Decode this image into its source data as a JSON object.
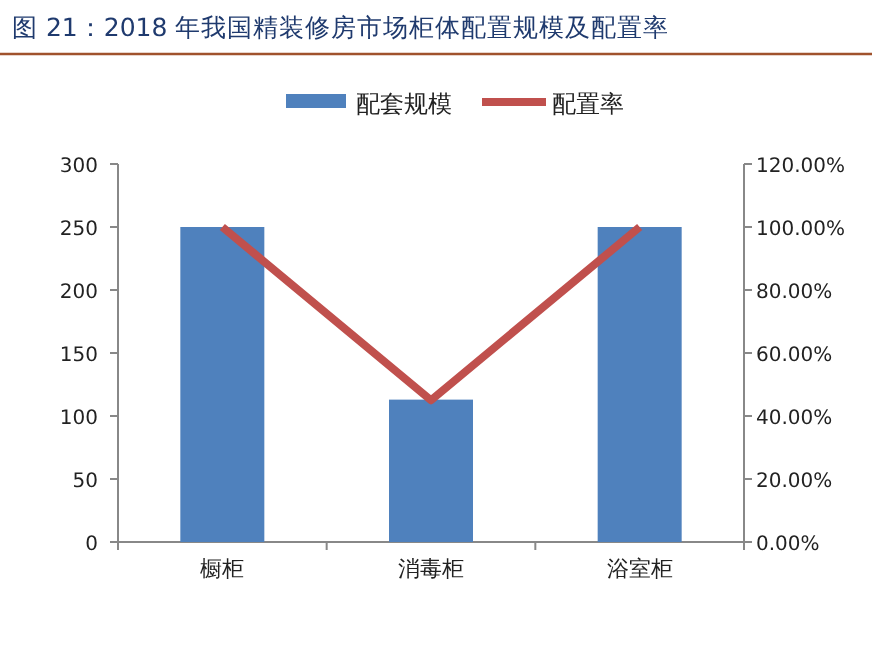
{
  "chart_data": {
    "type": "bar",
    "title": "图 21：2018 年我国精装修房市场柜体配置规模及配置率",
    "categories": [
      "橱柜",
      "消毒柜",
      "浴室柜"
    ],
    "series": [
      {
        "name": "配套规模",
        "color": "#4f81bd",
        "values": [
          250,
          113,
          250
        ]
      },
      {
        "name": "配置率",
        "type": "line",
        "axis": "y2",
        "color": "#c0504d",
        "values": [
          100,
          45,
          100
        ]
      }
    ],
    "ylim": [
      0,
      300
    ],
    "yticks": [
      0,
      50,
      100,
      150,
      200,
      250,
      300
    ],
    "y2lim": [
      0,
      120
    ],
    "y2ticks": [
      {
        "value": 0,
        "label": "0.00%"
      },
      {
        "value": 20,
        "label": "20.00%"
      },
      {
        "value": 40,
        "label": "40.00%"
      },
      {
        "value": 60,
        "label": "60.00%"
      },
      {
        "value": 80,
        "label": "80.00%"
      },
      {
        "value": 100,
        "label": "100.00%"
      },
      {
        "value": 120,
        "label": "120.00%"
      }
    ],
    "legend": "top",
    "grid": false
  }
}
